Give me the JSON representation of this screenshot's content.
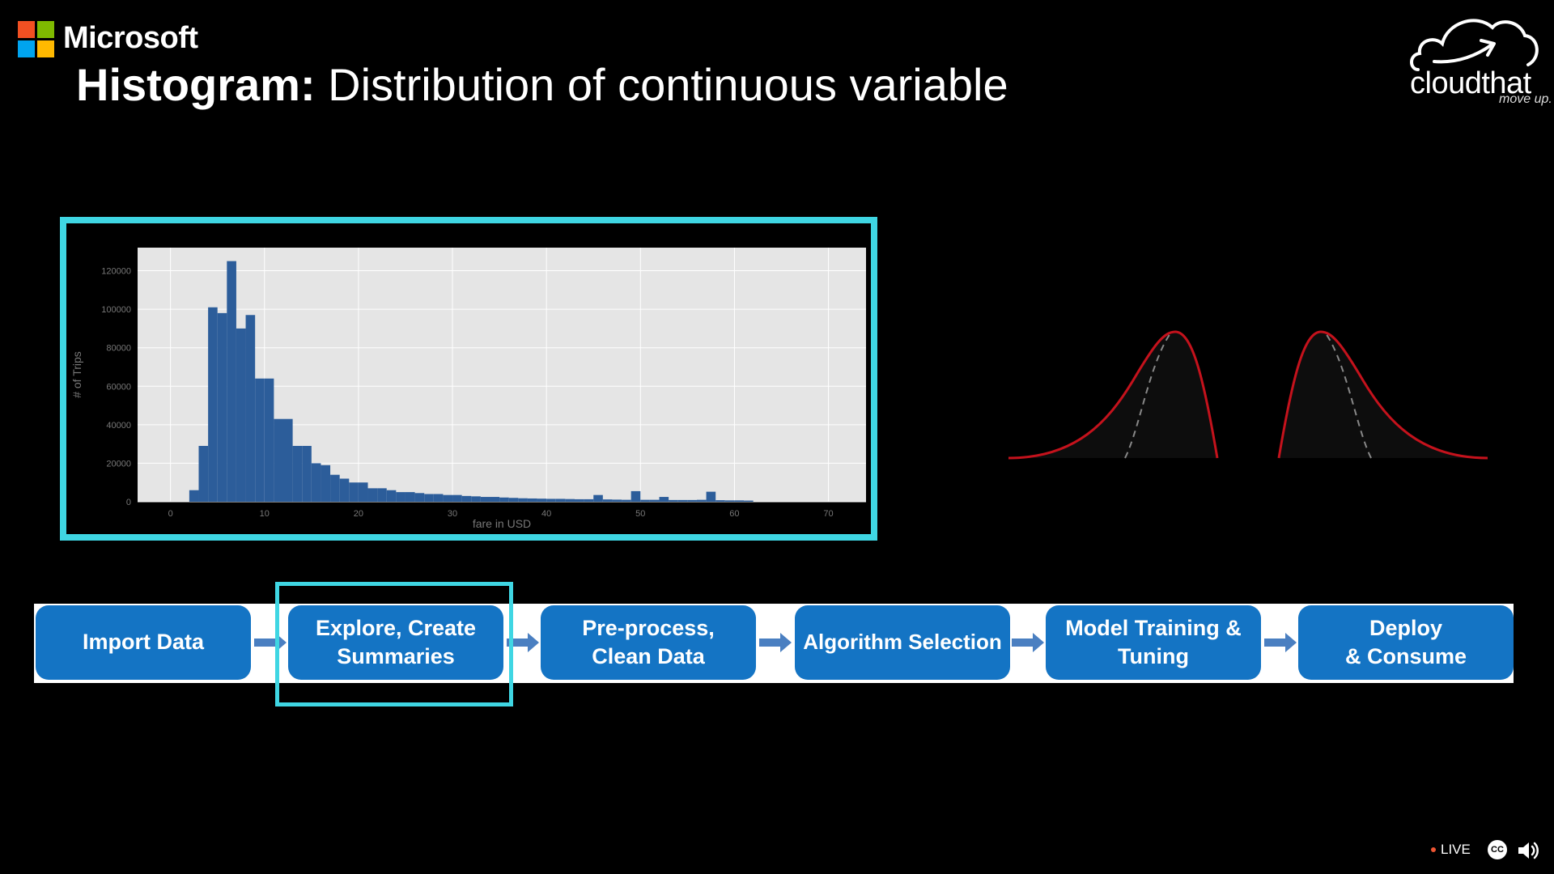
{
  "brand": {
    "microsoft": "Microsoft",
    "cloudthat": "cloudthat",
    "cloudthat_tag": "move up."
  },
  "slide": {
    "title_bold": "Histogram:",
    "title_rest": " Distribution of continuous variable"
  },
  "chart_data": {
    "type": "bar",
    "title": "",
    "xlabel": "fare in USD",
    "ylabel": "# of Trips",
    "xlim": [
      -3.5,
      74
    ],
    "ylim": [
      0,
      132000
    ],
    "xticks": [
      0,
      10,
      20,
      30,
      40,
      50,
      60,
      70
    ],
    "yticks": [
      0,
      20000,
      40000,
      60000,
      80000,
      100000,
      120000
    ],
    "bin_start": 2,
    "bin_width": 1,
    "grid": true,
    "values": [
      6000,
      29000,
      101000,
      98000,
      125000,
      90000,
      97000,
      64000,
      64000,
      43000,
      43000,
      29000,
      29000,
      20000,
      19000,
      14000,
      12000,
      10000,
      10000,
      7000,
      7000,
      6000,
      5000,
      5000,
      4500,
      4000,
      4000,
      3500,
      3500,
      3000,
      2800,
      2500,
      2500,
      2200,
      2000,
      1800,
      1700,
      1600,
      1500,
      1500,
      1400,
      1300,
      1300,
      3500,
      1200,
      1100,
      1000,
      5500,
      1000,
      1000,
      2500,
      900,
      900,
      900,
      1000,
      5200,
      800,
      700,
      700,
      600
    ]
  },
  "pipeline": {
    "steps": [
      "Import Data",
      "Explore, Create\nSummaries",
      "Pre-process,\nClean Data",
      "Algorithm Selection",
      "Model Training &\nTuning",
      "Deploy\n& Consume"
    ],
    "highlighted_index": 1
  },
  "player": {
    "live": "LIVE",
    "cc": "CC"
  },
  "colors": {
    "accent": "#3fd6e3",
    "step": "#1474c4",
    "bar": "#2c5d9a",
    "curve": "#c4121c"
  }
}
